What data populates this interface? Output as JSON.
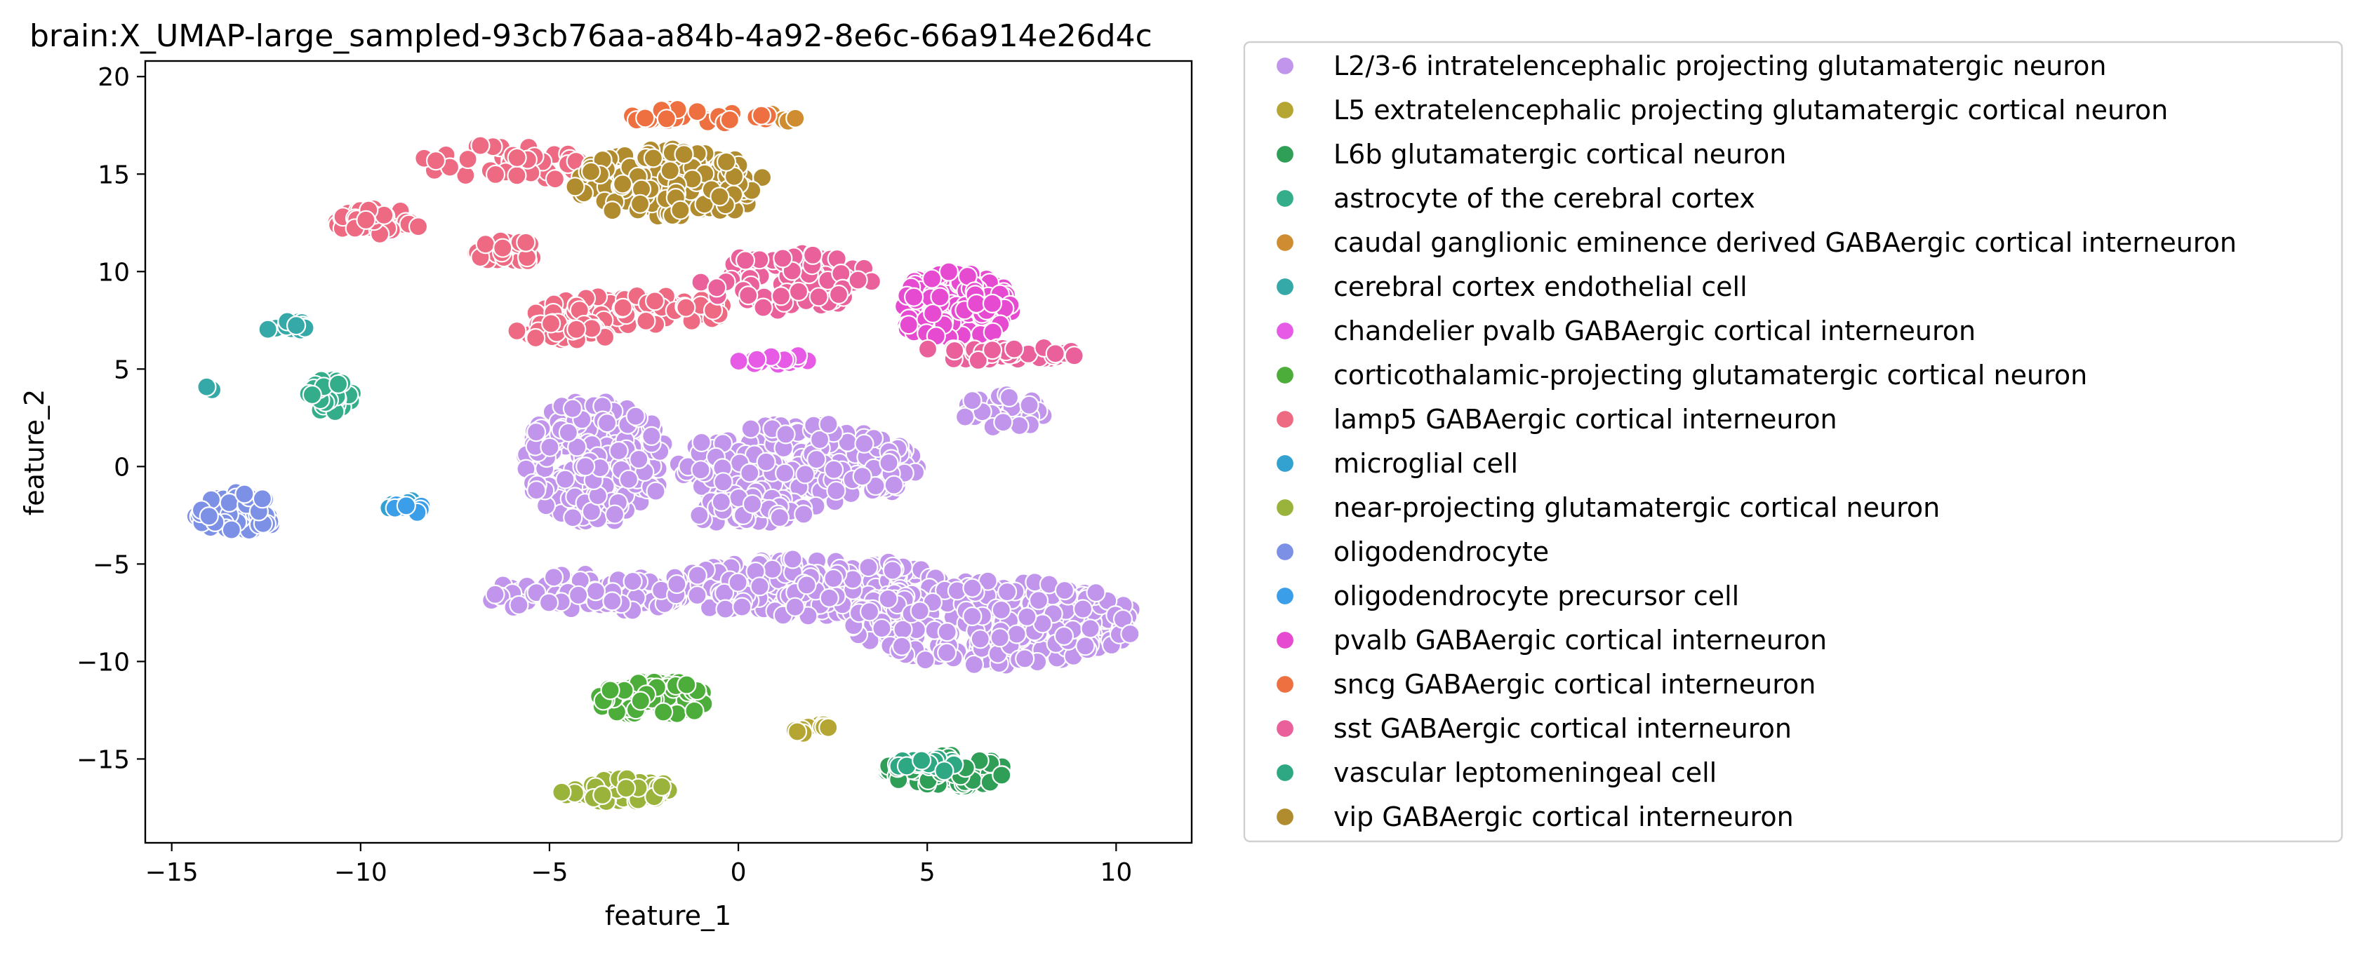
{
  "chart_data": {
    "type": "scatter",
    "title": "brain:X_UMAP-large_sampled-93cb76aa-a84b-4a92-8e6c-66a914e26d4c",
    "xlabel": "feature_1",
    "ylabel": "feature_2",
    "xlim": [
      -15.7,
      12.0
    ],
    "ylim": [
      -19.3,
      20.8
    ],
    "xticks": [
      -15,
      -10,
      -5,
      0,
      5,
      10
    ],
    "yticks": [
      -15,
      -10,
      -5,
      0,
      5,
      10,
      15,
      20
    ],
    "grid": false,
    "legend_position": "outside-right",
    "series": [
      {
        "name": "L2/3-6 intratelencephalic projecting glutamatergic neuron",
        "color": "#c095eb",
        "clusters": [
          {
            "cx": -3.8,
            "cy": 0.3,
            "rx": 1.9,
            "ry": 3.2,
            "n": 260
          },
          {
            "cx": 1.6,
            "cy": 0.1,
            "rx": 3.2,
            "ry": 2.2,
            "n": 240
          },
          {
            "cx": 0.3,
            "cy": -2.3,
            "rx": 1.5,
            "ry": 0.8,
            "n": 40
          },
          {
            "cx": -4.0,
            "cy": -6.5,
            "rx": 2.9,
            "ry": 1.0,
            "n": 90
          },
          {
            "cx": 2.0,
            "cy": -6.2,
            "rx": 4.0,
            "ry": 1.5,
            "n": 200
          },
          {
            "cx": 6.8,
            "cy": -8.0,
            "rx": 3.8,
            "ry": 2.2,
            "n": 320
          },
          {
            "cx": 7.0,
            "cy": 2.8,
            "rx": 1.1,
            "ry": 0.9,
            "n": 40
          }
        ]
      },
      {
        "name": "L5 extratelencephalic projecting glutamatergic cortical neuron",
        "color": "#b5a532",
        "clusters": [
          {
            "cx": 2.0,
            "cy": -13.5,
            "rx": 0.5,
            "ry": 0.3,
            "n": 10
          }
        ]
      },
      {
        "name": "L6b glutamatergic cortical neuron",
        "color": "#2f9e57",
        "clusters": [
          {
            "cx": 5.5,
            "cy": -15.6,
            "rx": 1.6,
            "ry": 0.9,
            "n": 110
          }
        ]
      },
      {
        "name": "astrocyte of the cerebral cortex",
        "color": "#33ad8a",
        "clusters": [
          {
            "cx": -10.8,
            "cy": 3.6,
            "rx": 0.7,
            "ry": 0.9,
            "n": 30
          }
        ]
      },
      {
        "name": "caudal ganglionic eminence derived GABAergic cortical interneuron",
        "color": "#cf8c31",
        "clusters": [
          {
            "cx": 1.0,
            "cy": 17.8,
            "rx": 0.6,
            "ry": 0.3,
            "n": 6
          }
        ]
      },
      {
        "name": "cerebral cortex endothelial cell",
        "color": "#35a8a8",
        "clusters": [
          {
            "cx": -12.0,
            "cy": 7.2,
            "rx": 0.6,
            "ry": 0.3,
            "n": 12
          },
          {
            "cx": -13.9,
            "cy": 4.0,
            "rx": 0.2,
            "ry": 0.2,
            "n": 3
          }
        ]
      },
      {
        "name": "chandelier pvalb GABAergic cortical interneuron",
        "color": "#e65ae6",
        "clusters": [
          {
            "cx": 0.9,
            "cy": 5.5,
            "rx": 1.0,
            "ry": 0.3,
            "n": 14
          }
        ]
      },
      {
        "name": "corticothalamic-projecting glutamatergic cortical neuron",
        "color": "#4dad3a",
        "clusters": [
          {
            "cx": -2.2,
            "cy": -11.9,
            "rx": 1.6,
            "ry": 0.9,
            "n": 90
          }
        ]
      },
      {
        "name": "lamp5 GABAergic cortical interneuron",
        "color": "#ed6a82",
        "clusters": [
          {
            "cx": -9.5,
            "cy": 12.6,
            "rx": 1.2,
            "ry": 0.7,
            "n": 40
          },
          {
            "cx": -6.3,
            "cy": 15.5,
            "rx": 2.2,
            "ry": 1.0,
            "n": 40
          },
          {
            "cx": -6.1,
            "cy": 11.0,
            "rx": 0.9,
            "ry": 0.6,
            "n": 30
          },
          {
            "cx": -2.8,
            "cy": 8.0,
            "rx": 2.6,
            "ry": 0.8,
            "n": 80
          },
          {
            "cx": -4.6,
            "cy": 6.9,
            "rx": 1.3,
            "ry": 0.5,
            "n": 30
          }
        ]
      },
      {
        "name": "microglial cell",
        "color": "#33a2d1",
        "clusters": [
          {
            "cx": -8.8,
            "cy": -2.0,
            "rx": 0.5,
            "ry": 0.3,
            "n": 8
          }
        ]
      },
      {
        "name": "near-projecting glutamatergic cortical neuron",
        "color": "#9ab33a",
        "clusters": [
          {
            "cx": -3.2,
            "cy": -16.6,
            "rx": 1.5,
            "ry": 0.6,
            "n": 60
          }
        ]
      },
      {
        "name": "oligodendrocyte",
        "color": "#7c90e6",
        "clusters": [
          {
            "cx": -13.3,
            "cy": -2.4,
            "rx": 1.1,
            "ry": 1.1,
            "n": 70
          }
        ]
      },
      {
        "name": "oligodendrocyte precursor cell",
        "color": "#3a9ee8",
        "clusters": [
          {
            "cx": -8.7,
            "cy": -2.1,
            "rx": 0.4,
            "ry": 0.3,
            "n": 8
          }
        ]
      },
      {
        "name": "pvalb GABAergic cortical interneuron",
        "color": "#e64ad1",
        "clusters": [
          {
            "cx": 5.7,
            "cy": 8.2,
            "rx": 1.6,
            "ry": 1.8,
            "n": 150
          }
        ]
      },
      {
        "name": "sncg GABAergic cortical interneuron",
        "color": "#ee7040",
        "clusters": [
          {
            "cx": -1.0,
            "cy": 18.0,
            "rx": 2.2,
            "ry": 0.4,
            "n": 25
          }
        ]
      },
      {
        "name": "sst GABAergic cortical interneuron",
        "color": "#e9609a",
        "clusters": [
          {
            "cx": 1.3,
            "cy": 9.5,
            "rx": 2.3,
            "ry": 1.5,
            "n": 90
          },
          {
            "cx": 6.8,
            "cy": 5.8,
            "rx": 2.2,
            "ry": 0.4,
            "n": 40
          }
        ]
      },
      {
        "name": "vascular leptomeningeal cell",
        "color": "#2ea882",
        "clusters": [
          {
            "cx": 5.0,
            "cy": -15.3,
            "rx": 1.0,
            "ry": 0.4,
            "n": 20
          }
        ]
      },
      {
        "name": "vip GABAergic cortical interneuron",
        "color": "#b18c2f",
        "clusters": [
          {
            "cx": -1.8,
            "cy": 14.5,
            "rx": 2.6,
            "ry": 1.8,
            "n": 150
          }
        ]
      }
    ]
  }
}
